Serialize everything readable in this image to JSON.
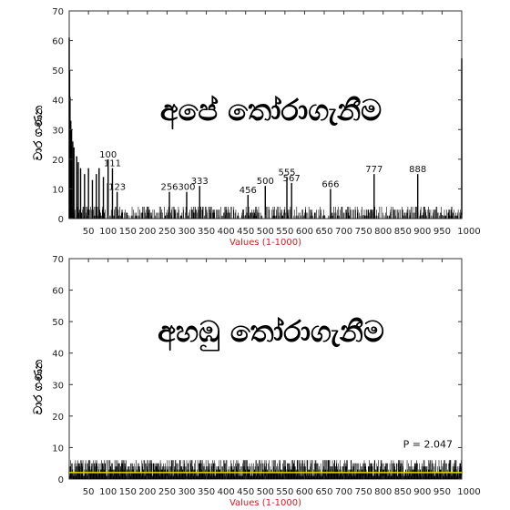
{
  "chart_data": [
    {
      "type": "bar",
      "title": "අපේ තෝරාගැනීම",
      "xlabel": "Values (1-1000)",
      "ylabel": "වාර ගණන",
      "xlim": [
        1,
        1000
      ],
      "ylim": [
        0,
        70
      ],
      "yticks": [
        0,
        10,
        20,
        30,
        40,
        50,
        60,
        70
      ],
      "xticks": [
        50,
        100,
        150,
        200,
        250,
        300,
        350,
        400,
        450,
        500,
        550,
        600,
        650,
        700,
        750,
        800,
        850,
        900,
        950,
        1000
      ],
      "xtick_labels": [
        "50",
        "100",
        "150",
        "200",
        "250",
        "300",
        "350",
        "400",
        "450",
        "500",
        "550",
        "600",
        "650",
        "700",
        "750",
        "800",
        "850",
        "900",
        "950",
        "1000"
      ],
      "grid": false,
      "highlight_bars": [
        {
          "x": 1,
          "value": 61
        },
        {
          "x": 2,
          "value": 50
        },
        {
          "x": 3,
          "value": 41
        },
        {
          "x": 5,
          "value": 33
        },
        {
          "x": 7,
          "value": 30
        },
        {
          "x": 10,
          "value": 26
        },
        {
          "x": 13,
          "value": 24
        },
        {
          "x": 20,
          "value": 21
        },
        {
          "x": 24,
          "value": 19
        },
        {
          "x": 30,
          "value": 17
        },
        {
          "x": 40,
          "value": 15
        },
        {
          "x": 50,
          "value": 17
        },
        {
          "x": 60,
          "value": 13
        },
        {
          "x": 70,
          "value": 15
        },
        {
          "x": 77,
          "value": 17
        },
        {
          "x": 88,
          "value": 14
        },
        {
          "x": 99,
          "value": 12
        },
        {
          "x": 100,
          "value": 20,
          "label": "100"
        },
        {
          "x": 111,
          "value": 17,
          "label": "111"
        },
        {
          "x": 123,
          "value": 9,
          "label": "123"
        },
        {
          "x": 256,
          "value": 9,
          "label": "256"
        },
        {
          "x": 300,
          "value": 9,
          "label": "300"
        },
        {
          "x": 333,
          "value": 11,
          "label": "333"
        },
        {
          "x": 456,
          "value": 8,
          "label": "456"
        },
        {
          "x": 500,
          "value": 11,
          "label": "500"
        },
        {
          "x": 555,
          "value": 14,
          "label": "555"
        },
        {
          "x": 567,
          "value": 12,
          "label": "567"
        },
        {
          "x": 666,
          "value": 10,
          "label": "666"
        },
        {
          "x": 777,
          "value": 15,
          "label": "777"
        },
        {
          "x": 888,
          "value": 15,
          "label": "888"
        },
        {
          "x": 1000,
          "value": 54
        }
      ],
      "background_max": 4
    },
    {
      "type": "bar",
      "title": "අහඹු තෝරාගැනීම",
      "xlabel": "Values (1-1000)",
      "ylabel": "වාර ගණන",
      "xlim": [
        1,
        1000
      ],
      "ylim": [
        0,
        70
      ],
      "yticks": [
        0,
        10,
        20,
        30,
        40,
        50,
        60,
        70
      ],
      "xticks": [
        50,
        100,
        150,
        200,
        250,
        300,
        350,
        400,
        450,
        500,
        550,
        600,
        650,
        700,
        750,
        800,
        850,
        900,
        950,
        1000
      ],
      "xtick_labels": [
        "50",
        "100",
        "150",
        "200",
        "250",
        "300",
        "350",
        "400",
        "450",
        "500",
        "550",
        "600",
        "650",
        "700",
        "750",
        "800",
        "850",
        "900",
        "950",
        "1000"
      ],
      "grid": false,
      "reference_line": {
        "value": 2.047,
        "color": "#e8d800",
        "label": "P = 2.047"
      },
      "background_max": 6
    }
  ]
}
